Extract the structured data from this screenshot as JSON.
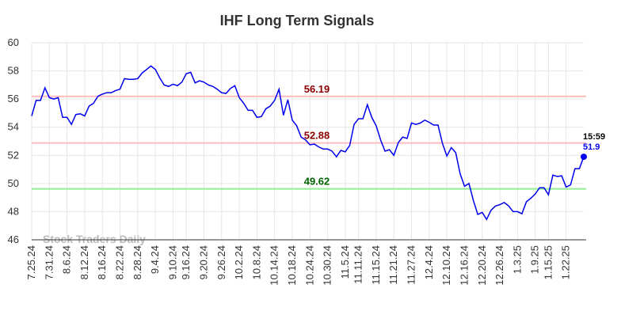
{
  "chart_data": {
    "type": "line",
    "title": "IHF Long Term Signals",
    "categories": [
      "7.25.24",
      null,
      null,
      null,
      "7.31.24",
      null,
      null,
      null,
      "8.6.24",
      null,
      null,
      null,
      "8.12.24",
      null,
      null,
      null,
      "8.16.24",
      null,
      null,
      null,
      "8.22.24",
      null,
      null,
      null,
      "8.28.24",
      null,
      null,
      null,
      "9.4.24",
      null,
      null,
      null,
      "9.10.24",
      null,
      null,
      "9.16.24",
      null,
      null,
      null,
      "9.20.24",
      null,
      null,
      null,
      "9.26.24",
      null,
      null,
      null,
      "10.2.24",
      null,
      null,
      null,
      "10.8.24",
      null,
      null,
      null,
      "10.14.24",
      null,
      null,
      null,
      "10.18.24",
      null,
      null,
      null,
      "10.24.24",
      null,
      null,
      null,
      "10.30.24",
      null,
      null,
      null,
      "11.5.24",
      null,
      null,
      "11.11.24",
      null,
      null,
      null,
      "11.15.24",
      null,
      null,
      null,
      "11.21.24",
      null,
      null,
      null,
      "11.27.24",
      null,
      null,
      null,
      "12.4.24",
      null,
      null,
      null,
      "12.10.24",
      null,
      null,
      null,
      "12.16.24",
      null,
      null,
      null,
      "12.20.24",
      null,
      null,
      null,
      "12.26.24",
      null,
      null,
      null,
      "1.3.25",
      null,
      null,
      null,
      "1.9.25",
      null,
      null,
      "1.15.25",
      null,
      null,
      null,
      "1.22.25",
      null,
      null,
      null,
      null
    ],
    "values": [
      54.8,
      55.9,
      55.9,
      56.8,
      56.1,
      56.0,
      56.1,
      54.7,
      54.7,
      54.2,
      54.9,
      54.95,
      54.8,
      55.5,
      55.7,
      56.2,
      56.35,
      56.45,
      56.45,
      56.6,
      56.7,
      57.45,
      57.4,
      57.4,
      57.45,
      57.85,
      58.1,
      58.35,
      58.1,
      57.5,
      57.0,
      56.9,
      57.05,
      56.95,
      57.2,
      57.8,
      57.9,
      57.15,
      57.3,
      57.2,
      57.0,
      56.9,
      56.7,
      56.45,
      56.4,
      56.75,
      56.95,
      56.1,
      55.7,
      55.2,
      55.2,
      54.7,
      54.75,
      55.3,
      55.5,
      55.9,
      56.7,
      54.85,
      55.95,
      54.5,
      54.1,
      53.3,
      53.1,
      52.75,
      52.8,
      52.6,
      52.45,
      52.45,
      52.3,
      51.9,
      52.35,
      52.25,
      52.7,
      54.2,
      54.6,
      54.6,
      55.6,
      54.7,
      54.1,
      53.1,
      52.3,
      52.4,
      52.0,
      52.9,
      53.3,
      53.2,
      54.3,
      54.2,
      54.3,
      54.5,
      54.35,
      54.15,
      54.15,
      52.85,
      51.95,
      52.55,
      52.2,
      50.7,
      49.8,
      50.0,
      48.8,
      47.8,
      47.95,
      47.45,
      48.1,
      48.4,
      48.5,
      48.65,
      48.4,
      48.0,
      48.0,
      47.85,
      48.7,
      48.95,
      49.25,
      49.7,
      49.7,
      49.2,
      50.6,
      50.5,
      50.55,
      49.75,
      49.9,
      51.05,
      51.05,
      51.9
    ],
    "color": "#0000ee",
    "ylim": [
      46,
      60
    ],
    "yticks": [
      46,
      48,
      50,
      52,
      54,
      56,
      58,
      60
    ],
    "grid": true,
    "hlines": [
      {
        "value": 56.19,
        "color": "#ffbcbc",
        "label_color": "#8b0000"
      },
      {
        "value": 52.88,
        "color": "#ffbcbc",
        "label_color": "#8b0000"
      },
      {
        "value": 49.62,
        "color": "#90ee90",
        "label_color": "#006400"
      }
    ],
    "last_time": "15:59",
    "watermark": "Stock Traders Daily"
  }
}
